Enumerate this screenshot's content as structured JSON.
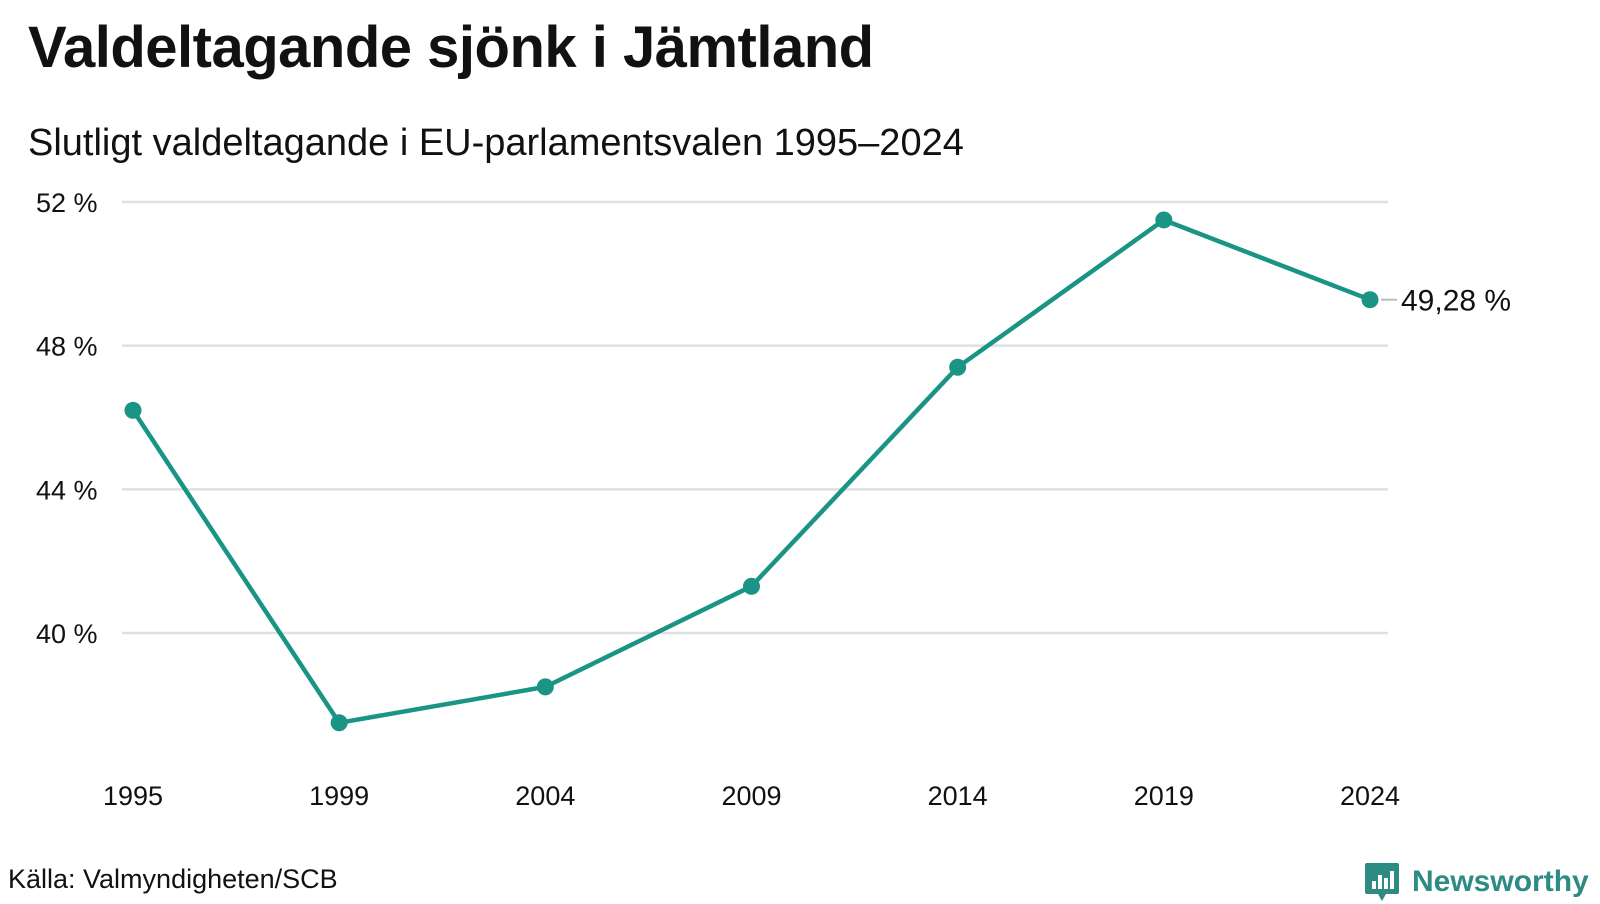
{
  "header": {
    "title": "Valdeltagande sjönk i Jämtland",
    "subtitle": "Slutligt valdeltagande i EU-parlamentsvalen 1995–2024"
  },
  "footer": {
    "source": "Källa: Valmyndigheten/SCB",
    "brand": "Newsworthy",
    "brand_icon": "bar-chart-badge-icon"
  },
  "colors": {
    "line": "#1a9485",
    "grid": "#e0e0e0",
    "brand": "#2e8b84"
  },
  "chart_data": {
    "type": "line",
    "title": "Valdeltagande sjönk i Jämtland",
    "subtitle": "Slutligt valdeltagande i EU-parlamentsvalen 1995–2024",
    "xlabel": "",
    "ylabel": "",
    "categories": [
      "1995",
      "1999",
      "2004",
      "2009",
      "2014",
      "2019",
      "2024"
    ],
    "values": [
      46.2,
      37.5,
      38.5,
      41.3,
      47.4,
      51.5,
      49.28
    ],
    "y_ticks": [
      40,
      44,
      48,
      52
    ],
    "y_tick_labels": [
      "40 %",
      "44 %",
      "48 %",
      "52 %"
    ],
    "ylim": [
      40,
      52
    ],
    "grid": true,
    "end_label": "49,28 %"
  }
}
